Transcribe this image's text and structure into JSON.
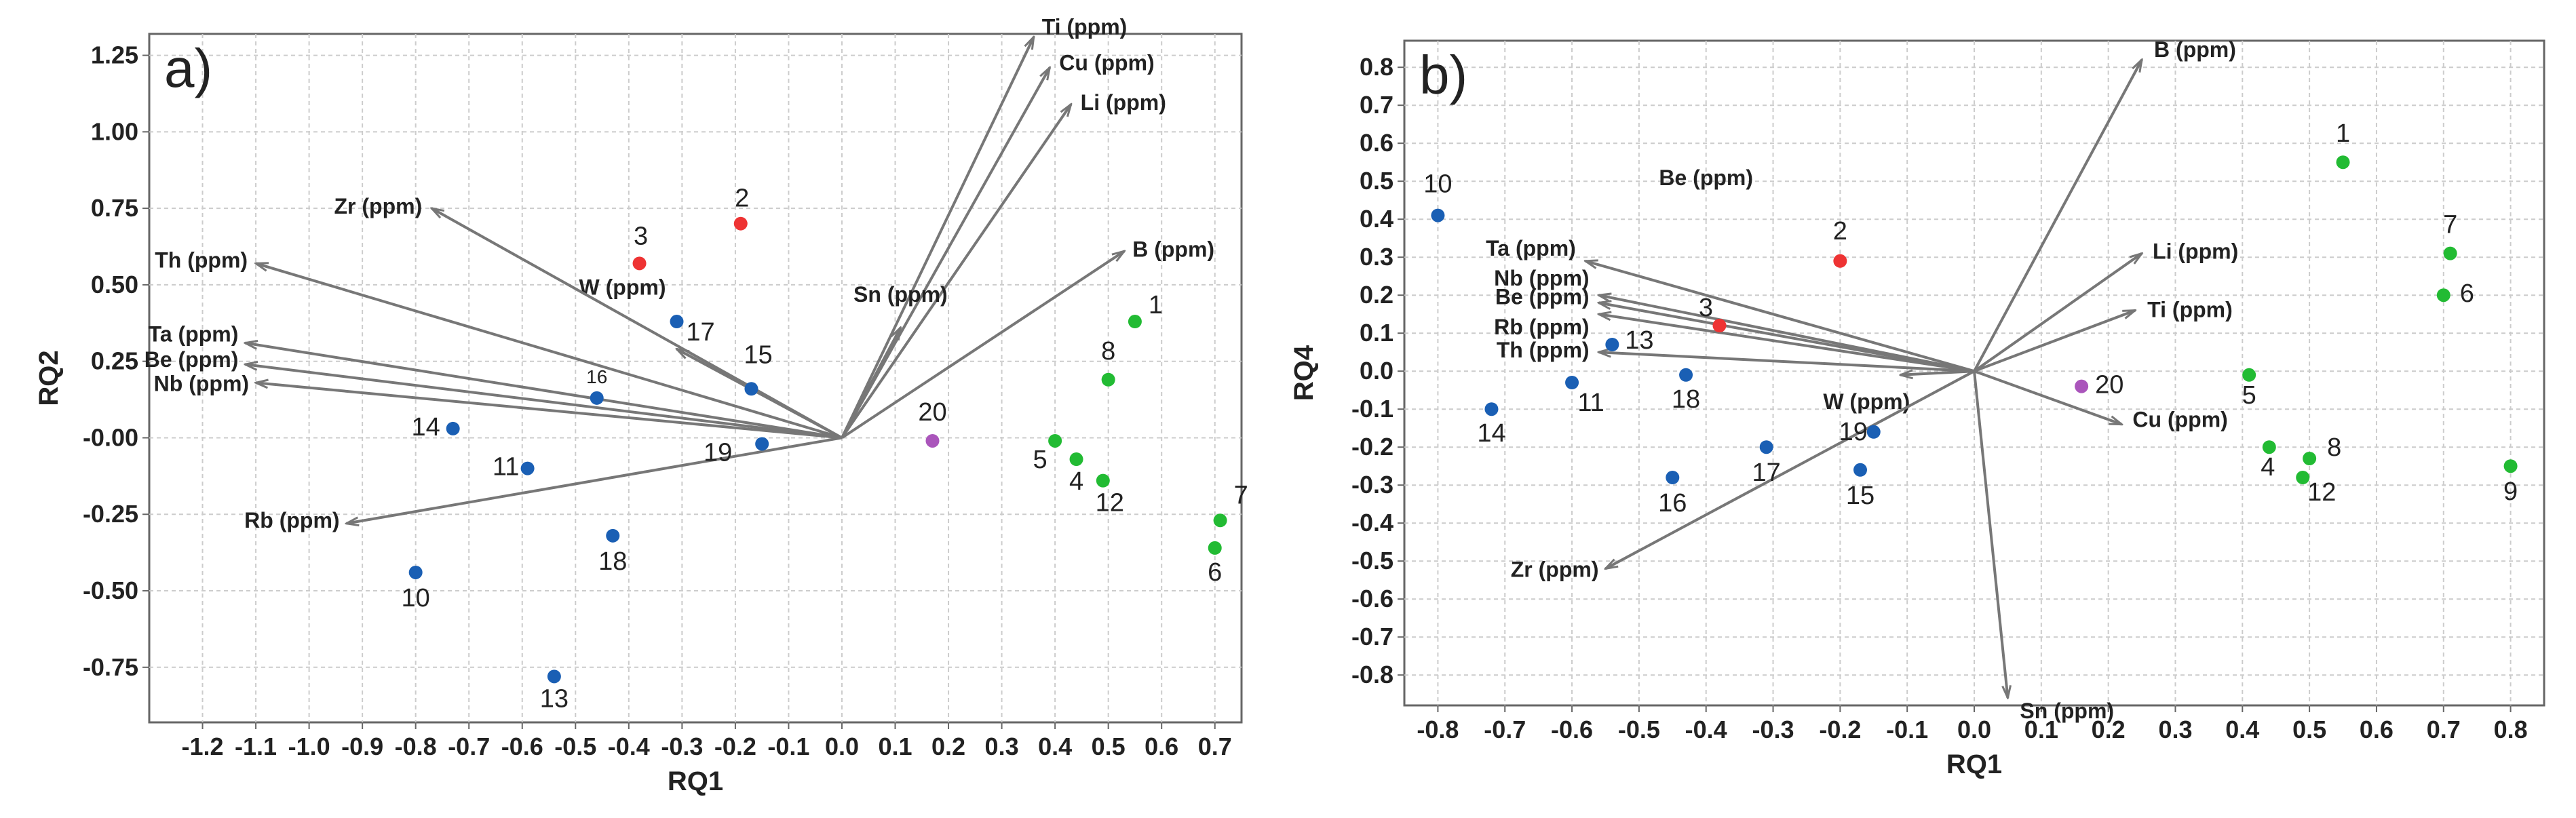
{
  "chart_data": [
    {
      "type": "scatter",
      "panel_label": "a)",
      "xlabel": "RQ1",
      "ylabel": "RQ2",
      "xlim": [
        -1.3,
        0.75
      ],
      "ylim": [
        -0.93,
        1.32
      ],
      "grid": true,
      "x_ticks": [
        -1.2,
        -1.1,
        -1.0,
        -0.9,
        -0.8,
        -0.7,
        -0.6,
        -0.5,
        -0.4,
        -0.3,
        -0.2,
        -0.1,
        0.0,
        0.1,
        0.2,
        0.3,
        0.4,
        0.5,
        0.6,
        0.7
      ],
      "x_tick_labels": [
        "-1.2",
        "-1.1",
        "-1.0",
        "-0.9",
        "-0.8",
        "-0.7",
        "-0.6",
        "-0.5",
        "-0.4",
        "-0.3",
        "-0.2",
        "-0.1",
        "0.0",
        "0.1",
        "0.2",
        "0.3",
        "0.4",
        "0.5",
        "0.6",
        "0.7"
      ],
      "y_ticks": [
        1.25,
        1.0,
        0.75,
        0.5,
        0.25,
        0.0,
        -0.25,
        -0.5,
        -0.75
      ],
      "y_tick_labels": [
        "1.25",
        "1.00",
        "0.75",
        "0.50",
        "0.25",
        "-0.00",
        "-0.25",
        "-0.50",
        "-0.75"
      ],
      "points": [
        {
          "label": "1",
          "x": 0.55,
          "y": 0.38,
          "color": "#22bb33"
        },
        {
          "label": "2",
          "x": -0.19,
          "y": 0.7,
          "color": "#ee3333"
        },
        {
          "label": "3",
          "x": -0.38,
          "y": 0.57,
          "color": "#ee3333"
        },
        {
          "label": "4",
          "x": 0.44,
          "y": -0.07,
          "color": "#22bb33"
        },
        {
          "label": "5",
          "x": 0.4,
          "y": -0.01,
          "color": "#22bb33"
        },
        {
          "label": "6",
          "x": 0.7,
          "y": -0.36,
          "color": "#22bb33"
        },
        {
          "label": "7",
          "x": 0.71,
          "y": -0.27,
          "color": "#22bb33"
        },
        {
          "label": "8",
          "x": 0.5,
          "y": 0.19,
          "color": "#22bb33"
        },
        {
          "label": "10",
          "x": -0.8,
          "y": -0.44,
          "color": "#1a5fb4"
        },
        {
          "label": "11",
          "x": -0.59,
          "y": -0.1,
          "color": "#1a5fb4"
        },
        {
          "label": "12",
          "x": 0.49,
          "y": -0.14,
          "color": "#22bb33"
        },
        {
          "label": "13",
          "x": -0.54,
          "y": -0.78,
          "color": "#1a5fb4"
        },
        {
          "label": "14",
          "x": -0.73,
          "y": 0.03,
          "color": "#1a5fb4"
        },
        {
          "label": "15",
          "x": -0.17,
          "y": 0.16,
          "color": "#1a5fb4"
        },
        {
          "label": "16",
          "x": -0.46,
          "y": 0.13,
          "color": "#1a5fb4"
        },
        {
          "label": "17",
          "x": -0.31,
          "y": 0.38,
          "color": "#1a5fb4"
        },
        {
          "label": "18",
          "x": -0.43,
          "y": -0.32,
          "color": "#1a5fb4"
        },
        {
          "label": "19",
          "x": -0.15,
          "y": -0.02,
          "color": "#1a5fb4"
        },
        {
          "label": "20",
          "x": 0.17,
          "y": -0.01,
          "color": "#aa55bb"
        }
      ],
      "vectors": [
        {
          "label": "Ti (ppm)",
          "x": 0.36,
          "y": 1.31
        },
        {
          "label": "Cu (ppm)",
          "x": 0.39,
          "y": 1.21
        },
        {
          "label": "Li (ppm)",
          "x": 0.43,
          "y": 1.09
        },
        {
          "label": "Sn (ppm)",
          "x": 0.11,
          "y": 0.36
        },
        {
          "label": "B (ppm)",
          "x": 0.53,
          "y": 0.61
        },
        {
          "label": "W (ppm)",
          "x": -0.31,
          "y": 0.29
        },
        {
          "label": "Zr (ppm)",
          "x": -0.77,
          "y": 0.75
        },
        {
          "label": "Th (ppm)",
          "x": -1.1,
          "y": 0.57
        },
        {
          "label": "Ta (ppm)",
          "x": -1.12,
          "y": 0.31
        },
        {
          "label": "Be (ppm)",
          "x": -1.12,
          "y": 0.24
        },
        {
          "label": "Nb (ppm)",
          "x": -1.1,
          "y": 0.18
        },
        {
          "label": "Rb (ppm)",
          "x": -0.93,
          "y": -0.28
        }
      ]
    },
    {
      "type": "scatter",
      "panel_label": "b)",
      "xlabel": "RQ1",
      "ylabel": "RQ4",
      "xlim": [
        -0.85,
        0.85
      ],
      "ylim": [
        -0.88,
        0.87
      ],
      "grid": true,
      "x_ticks": [
        -0.8,
        -0.7,
        -0.6,
        -0.5,
        -0.4,
        -0.3,
        -0.2,
        -0.1,
        0.0,
        0.1,
        0.2,
        0.3,
        0.4,
        0.5,
        0.6,
        0.7,
        0.8
      ],
      "x_tick_labels": [
        "-0.8",
        "-0.7",
        "-0.6",
        "-0.5",
        "-0.4",
        "-0.3",
        "-0.2",
        "-0.1",
        "0.0",
        "0.1",
        "0.2",
        "0.3",
        "0.4",
        "0.5",
        "0.6",
        "0.7",
        "0.8"
      ],
      "y_ticks": [
        0.8,
        0.7,
        0.6,
        0.5,
        0.4,
        0.3,
        0.2,
        0.1,
        0.0,
        -0.1,
        -0.2,
        -0.3,
        -0.4,
        -0.5,
        -0.6,
        -0.7,
        -0.8
      ],
      "y_tick_labels": [
        "0.8",
        "0.7",
        "0.6",
        "0.5",
        "0.4",
        "0.3",
        "0.2",
        "0.1",
        "0.0",
        "-0.1",
        "-0.2",
        "-0.3",
        "-0.4",
        "-0.5",
        "-0.6",
        "-0.7",
        "-0.8"
      ],
      "points": [
        {
          "label": "1",
          "x": 0.55,
          "y": 0.55,
          "color": "#22bb33"
        },
        {
          "label": "2",
          "x": -0.2,
          "y": 0.29,
          "color": "#ee3333"
        },
        {
          "label": "3",
          "x": -0.38,
          "y": 0.12,
          "color": "#ee3333"
        },
        {
          "label": "4",
          "x": 0.44,
          "y": -0.2,
          "color": "#22bb33"
        },
        {
          "label": "5",
          "x": 0.41,
          "y": -0.01,
          "color": "#22bb33"
        },
        {
          "label": "6",
          "x": 0.7,
          "y": 0.2,
          "color": "#22bb33"
        },
        {
          "label": "7",
          "x": 0.71,
          "y": 0.31,
          "color": "#22bb33"
        },
        {
          "label": "8",
          "x": 0.5,
          "y": -0.23,
          "color": "#22bb33"
        },
        {
          "label": "9",
          "x": 0.8,
          "y": -0.25,
          "color": "#22bb33"
        },
        {
          "label": "10",
          "x": -0.8,
          "y": 0.41,
          "color": "#1a5fb4"
        },
        {
          "label": "11",
          "x": -0.6,
          "y": -0.03,
          "color": "#1a5fb4"
        },
        {
          "label": "12",
          "x": 0.49,
          "y": -0.28,
          "color": "#22bb33"
        },
        {
          "label": "13",
          "x": -0.54,
          "y": 0.07,
          "color": "#1a5fb4"
        },
        {
          "label": "14",
          "x": -0.72,
          "y": -0.1,
          "color": "#1a5fb4"
        },
        {
          "label": "15",
          "x": -0.17,
          "y": -0.26,
          "color": "#1a5fb4"
        },
        {
          "label": "16",
          "x": -0.45,
          "y": -0.28,
          "color": "#1a5fb4"
        },
        {
          "label": "17",
          "x": -0.31,
          "y": -0.2,
          "color": "#1a5fb4"
        },
        {
          "label": "18",
          "x": -0.43,
          "y": -0.01,
          "color": "#1a5fb4"
        },
        {
          "label": "19",
          "x": -0.15,
          "y": -0.16,
          "color": "#1a5fb4"
        },
        {
          "label": "20",
          "x": 0.16,
          "y": -0.04,
          "color": "#aa55bb"
        }
      ],
      "vectors": [
        {
          "label": "B (ppm)",
          "x": 0.25,
          "y": 0.82
        },
        {
          "label": "Li (ppm)",
          "x": 0.25,
          "y": 0.31
        },
        {
          "label": "Ti (ppm)",
          "x": 0.24,
          "y": 0.16
        },
        {
          "label": "Cu (ppm)",
          "x": 0.22,
          "y": -0.14
        },
        {
          "label": "W (ppm)",
          "x": -0.11,
          "y": -0.01
        },
        {
          "label": "Sn (ppm)",
          "x": 0.05,
          "y": -0.86
        },
        {
          "label": "Zr (ppm)",
          "x": -0.55,
          "y": -0.52
        },
        {
          "label": "Ta (ppm)",
          "x": -0.58,
          "y": 0.29
        },
        {
          "label": "Nb (ppm)",
          "x": -0.56,
          "y": 0.2
        },
        {
          "label": "Be (ppm)",
          "x": -0.56,
          "y": 0.18
        },
        {
          "label": "Rb (ppm)",
          "x": -0.56,
          "y": 0.15
        },
        {
          "label": "Th (ppm)",
          "x": -0.56,
          "y": 0.05
        }
      ],
      "annotations": [
        {
          "text": "Be (ppm)",
          "x": -0.4,
          "y": 0.49
        }
      ]
    }
  ]
}
